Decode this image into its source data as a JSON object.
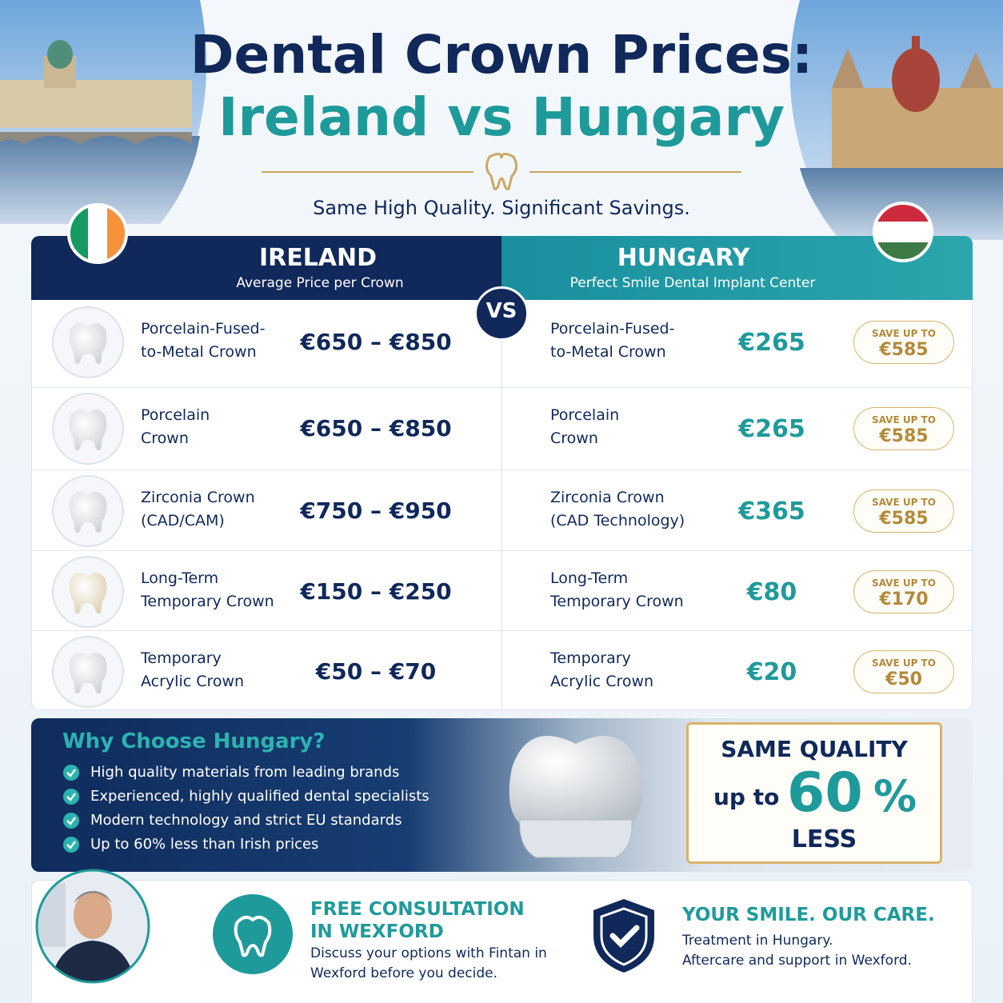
{
  "header": {
    "title_line1": "Dental Crown Prices:",
    "title_line2": "Ireland vs Hungary",
    "tagline": "Same High Quality.  Significant Savings."
  },
  "ireland": {
    "name": "IRELAND",
    "subtitle": "Average Price per Crown"
  },
  "hungary": {
    "name": "HUNGARY",
    "subtitle": "Perfect Smile Dental Implant Center"
  },
  "vs": "VS",
  "rows": [
    {
      "ireland_label": [
        "Porcelain-Fused-",
        "to-Metal Crown"
      ],
      "ireland_price": "€650 – €850",
      "hungary_label": [
        "Porcelain-Fused-",
        "to-Metal Crown"
      ],
      "hungary_price": "€265",
      "save_label": "SAVE UP TO",
      "save_amount": "€585"
    },
    {
      "ireland_label": [
        "Porcelain",
        "Crown"
      ],
      "ireland_price": "€650 – €850",
      "hungary_label": [
        "Porcelain",
        "Crown"
      ],
      "hungary_price": "€265",
      "save_label": "SAVE UP TO",
      "save_amount": "€585"
    },
    {
      "ireland_label": [
        "Zirconia Crown",
        "(CAD/CAM)"
      ],
      "ireland_price": "€750 – €950",
      "hungary_label": [
        "Zirconia Crown",
        "(CAD Technology)"
      ],
      "hungary_price": "€365",
      "save_label": "SAVE UP TO",
      "save_amount": "€585"
    },
    {
      "ireland_label": [
        "Long-Term",
        "Temporary Crown"
      ],
      "ireland_price": "€150 – €250",
      "hungary_label": [
        "Long-Term",
        "Temporary Crown"
      ],
      "hungary_price": "€80",
      "save_label": "SAVE UP TO",
      "save_amount": "€170"
    },
    {
      "ireland_label": [
        "Temporary",
        "Acrylic Crown"
      ],
      "ireland_price": "€50 – €70",
      "hungary_label": [
        "Temporary",
        "Acrylic Crown"
      ],
      "hungary_price": "€20",
      "save_label": "SAVE UP TO",
      "save_amount": "€50"
    }
  ],
  "why": {
    "title": "Why Choose Hungary?",
    "items": [
      "High quality materials from leading brands",
      "Experienced, highly qualified dental specialists",
      "Modern technology and strict EU standards",
      "Up to 60% less than Irish prices"
    ]
  },
  "badge": {
    "line1": "SAME QUALITY",
    "prefix": "up to",
    "number": "60",
    "unit": "%",
    "line3": "LESS"
  },
  "consultation": {
    "title": [
      "FREE CONSULTATION",
      "IN WEXFORD"
    ],
    "text": [
      "Discuss your options with Fintan in",
      "Wexford before you decide."
    ]
  },
  "care": {
    "title": "YOUR SMILE. OUR CARE.",
    "text": [
      "Treatment in Hungary.",
      "Aftercare and support in Wexford."
    ]
  }
}
